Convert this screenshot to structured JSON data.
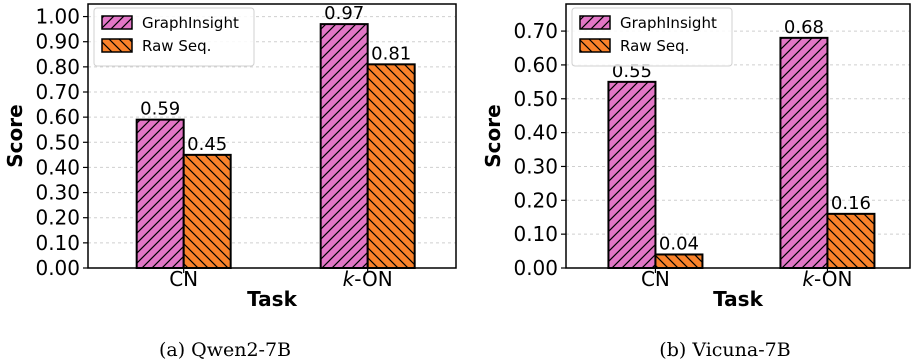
{
  "colors": {
    "graphinsight": "#e276c6",
    "raw_seq": "#f9822a",
    "hatch": "#000000"
  },
  "chart_data": [
    {
      "type": "bar",
      "caption": "(a) Qwen2-7B",
      "xlabel": "Task",
      "ylabel": "Score",
      "categories": [
        "CN",
        "k-ON"
      ],
      "series": [
        {
          "name": "GraphInsight",
          "values": [
            0.59,
            0.97
          ],
          "labels": [
            "0.59",
            "0.97"
          ]
        },
        {
          "name": "Raw Seq.",
          "values": [
            0.45,
            0.81
          ],
          "labels": [
            "0.45",
            "0.81"
          ]
        }
      ],
      "ylim": [
        0,
        1.05
      ],
      "yticks": [
        0,
        0.1,
        0.2,
        0.3,
        0.4,
        0.5,
        0.6,
        0.7,
        0.8,
        0.9,
        1.0
      ],
      "ytick_labels": [
        "0.00",
        "0.10",
        "0.20",
        "0.30",
        "0.40",
        "0.50",
        "0.60",
        "0.70",
        "0.80",
        "0.90",
        "1.00"
      ],
      "grid": true,
      "legend": "top-left"
    },
    {
      "type": "bar",
      "caption": "(b) Vicuna-7B",
      "xlabel": "Task",
      "ylabel": "Score",
      "categories": [
        "CN",
        "k-ON"
      ],
      "series": [
        {
          "name": "GraphInsight",
          "values": [
            0.55,
            0.68
          ],
          "labels": [
            "0.55",
            "0.68"
          ]
        },
        {
          "name": "Raw Seq.",
          "values": [
            0.04,
            0.16
          ],
          "labels": [
            "0.04",
            "0.16"
          ]
        }
      ],
      "ylim": [
        0,
        0.78
      ],
      "yticks": [
        0,
        0.1,
        0.2,
        0.3,
        0.4,
        0.5,
        0.6,
        0.7
      ],
      "ytick_labels": [
        "0.00",
        "0.10",
        "0.20",
        "0.30",
        "0.40",
        "0.50",
        "0.60",
        "0.70"
      ],
      "grid": true,
      "legend": "top-left"
    }
  ]
}
